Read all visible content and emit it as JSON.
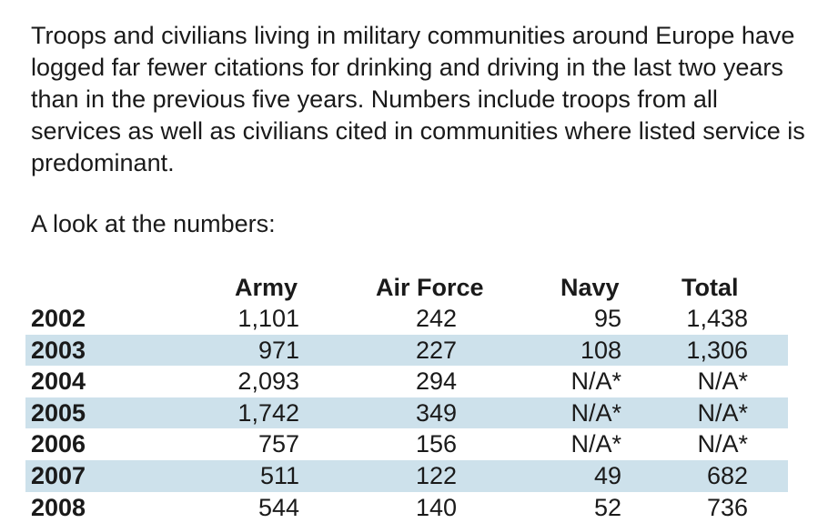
{
  "intro_text": "Troops and civilians living in military communities around Europe have logged far fewer citations for drinking and driving in the last two years than in the previous five years. Numbers include troops from all services as well as civilians cited in communities where listed service is predominant.",
  "lead_text": "A look at the numbers:",
  "table": {
    "columns": [
      "Army",
      "Air Force",
      "Navy",
      "Total"
    ],
    "rows": [
      {
        "year": "2002",
        "army": "1,101",
        "air_force": "242",
        "navy": "95",
        "total": "1,438"
      },
      {
        "year": "2003",
        "army": "971",
        "air_force": "227",
        "navy": "108",
        "total": "1,306"
      },
      {
        "year": "2004",
        "army": "2,093",
        "air_force": "294",
        "navy": "N/A*",
        "total": "N/A*"
      },
      {
        "year": "2005",
        "army": "1,742",
        "air_force": "349",
        "navy": "N/A*",
        "total": "N/A*"
      },
      {
        "year": "2006",
        "army": "757",
        "air_force": "156",
        "navy": "N/A*",
        "total": "N/A*"
      },
      {
        "year": "2007",
        "army": "511",
        "air_force": "122",
        "navy": "49",
        "total": "682"
      },
      {
        "year": "2008",
        "army": "544",
        "air_force": "140",
        "navy": "52",
        "total": "736"
      }
    ]
  },
  "colors": {
    "row_shade": "#cde1eb",
    "text": "#1a1a1a"
  }
}
